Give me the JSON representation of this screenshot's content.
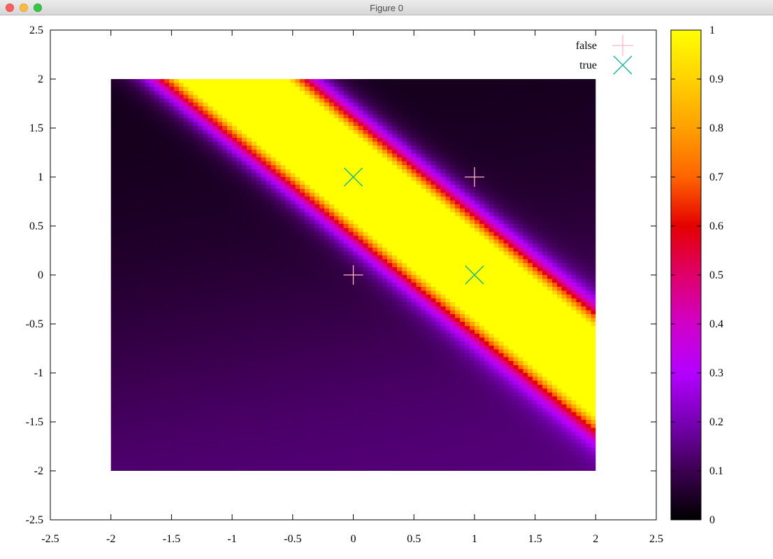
{
  "window": {
    "title": "Figure 0",
    "controls": [
      "close",
      "minimize",
      "zoom"
    ]
  },
  "chart_data": {
    "type": "heatmap",
    "title": "",
    "xlabel": "",
    "ylabel": "",
    "xlim": [
      -2.5,
      2.5
    ],
    "ylim": [
      -2.5,
      2.5
    ],
    "x_ticks": [
      "-2.5",
      "-2",
      "-1.5",
      "-1",
      "-0.5",
      "0",
      "0.5",
      "1",
      "1.5",
      "2",
      "2.5"
    ],
    "y_ticks": [
      "-2.5",
      "-2",
      "-1.5",
      "-1",
      "-0.5",
      "0",
      "0.5",
      "1",
      "1.5",
      "2",
      "2.5"
    ],
    "heatmap": {
      "x_range": [
        -2,
        2
      ],
      "y_range": [
        -2,
        2
      ],
      "description_values": "output probability of a network trained on XOR; high (1) band along x + y ≈ 1, low (0) elsewhere",
      "grid_resolution": 100
    },
    "colorbar": {
      "range": [
        0,
        1
      ],
      "ticks": [
        "0",
        "0.1",
        "0.2",
        "0.3",
        "0.4",
        "0.5",
        "0.6",
        "0.7",
        "0.8",
        "0.9",
        "1"
      ],
      "palette": [
        "#000000",
        "#3c0050",
        "#7800b4",
        "#b400ff",
        "#d000c8",
        "#e0006a",
        "#e40000",
        "#ff6400",
        "#ffa000",
        "#ffd200",
        "#ffff00"
      ]
    },
    "legend": {
      "placement": "top-right"
    },
    "series": [
      {
        "name": "false",
        "marker": "plus",
        "color": "#ffb6c1",
        "points": [
          [
            0,
            0
          ],
          [
            1,
            1
          ]
        ]
      },
      {
        "name": "true",
        "marker": "cross",
        "color": "#00b39a",
        "points": [
          [
            0,
            1
          ],
          [
            1,
            0
          ]
        ]
      }
    ]
  }
}
